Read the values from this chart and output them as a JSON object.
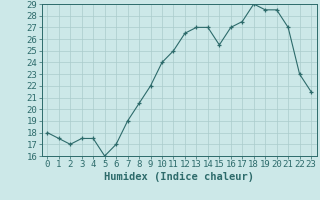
{
  "x": [
    0,
    1,
    2,
    3,
    4,
    5,
    6,
    7,
    8,
    9,
    10,
    11,
    12,
    13,
    14,
    15,
    16,
    17,
    18,
    19,
    20,
    21,
    22,
    23
  ],
  "y": [
    18,
    17.5,
    17,
    17.5,
    17.5,
    16,
    17,
    19,
    20.5,
    22,
    24,
    25,
    26.5,
    27,
    27,
    25.5,
    27,
    27.5,
    29,
    28.5,
    28.5,
    27,
    23,
    21.5
  ],
  "line_color": "#2d6b6b",
  "marker": "+",
  "bg_color": "#cce8e8",
  "grid_color": "#aacccc",
  "xlabel": "Humidex (Indice chaleur)",
  "ylim": [
    16,
    29
  ],
  "xlim": [
    -0.5,
    23.5
  ],
  "yticks": [
    16,
    17,
    18,
    19,
    20,
    21,
    22,
    23,
    24,
    25,
    26,
    27,
    28,
    29
  ],
  "xticks": [
    0,
    1,
    2,
    3,
    4,
    5,
    6,
    7,
    8,
    9,
    10,
    11,
    12,
    13,
    14,
    15,
    16,
    17,
    18,
    19,
    20,
    21,
    22,
    23
  ],
  "axis_color": "#2d6b6b",
  "tick_color": "#2d6b6b",
  "label_fontsize": 7.5,
  "tick_fontsize": 6.5
}
